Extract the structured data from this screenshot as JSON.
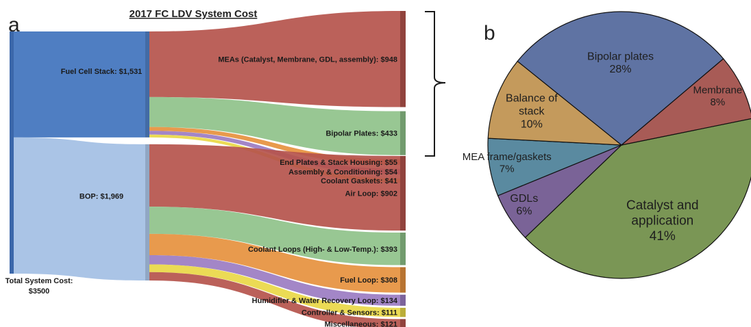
{
  "panels": {
    "a": "a",
    "b": "b"
  },
  "chart_data": [
    {
      "type": "sankey",
      "title": "2017 FC LDV System Cost",
      "root": {
        "label": "Total System Cost:",
        "value_label": "$3500",
        "value": 3500
      },
      "groups": [
        {
          "id": "stack",
          "label": "Fuel Cell Stack: $1,531",
          "value": 1531,
          "color": "#4f7ec2",
          "children": [
            {
              "label": "MEAs (Catalyst, Membrane, GDL, assembly): $948",
              "value": 948,
              "color": "#b5544c"
            },
            {
              "label": "Bipolar Plates: $433",
              "value": 433,
              "color": "#8fc28a"
            },
            {
              "label": "End Plates & Stack Housing: $55",
              "value": 55,
              "color": "#e6913e"
            },
            {
              "label": "Assembly & Conditioning: $54",
              "value": 54,
              "color": "#9b7cc2"
            },
            {
              "label": "Coolant Gaskets: $41",
              "value": 41,
              "color": "#e9d847"
            }
          ]
        },
        {
          "id": "bop",
          "label": "BOP: $1,969",
          "value": 1969,
          "color": "#aac4e6",
          "children": [
            {
              "label": "Air Loop: $902",
              "value": 902,
              "color": "#b5544c"
            },
            {
              "label": "Coolant Loops (High- & Low-Temp.): $393",
              "value": 393,
              "color": "#8fc28a"
            },
            {
              "label": "Fuel Loop: $308",
              "value": 308,
              "color": "#e6913e"
            },
            {
              "label": "Humidifier & Water Recovery Loop: $134",
              "value": 134,
              "color": "#9b7cc2"
            },
            {
              "label": "Controller & Sensors: $111",
              "value": 111,
              "color": "#e9d847"
            },
            {
              "label": "Miscellaneous: $121",
              "value": 121,
              "color": "#b5544c"
            }
          ]
        }
      ]
    },
    {
      "type": "pie",
      "slices": [
        {
          "label": [
            "Catalyst and",
            "application",
            "41%"
          ],
          "value": 41,
          "color": "#7a9655"
        },
        {
          "label": [
            "GDLs",
            "6%"
          ],
          "value": 6,
          "color": "#7a6397"
        },
        {
          "label": [
            "MEA frame/gaskets",
            "7%"
          ],
          "value": 7,
          "color": "#5a8aa0"
        },
        {
          "label": [
            "Balance of",
            "stack",
            "10%"
          ],
          "value": 10,
          "color": "#c49a5c"
        },
        {
          "label": [
            "Bipolar plates",
            "28%"
          ],
          "value": 28,
          "color": "#5f73a3"
        },
        {
          "label": [
            "Membrane",
            "8%"
          ],
          "value": 8,
          "color": "#a85b56"
        }
      ]
    }
  ]
}
